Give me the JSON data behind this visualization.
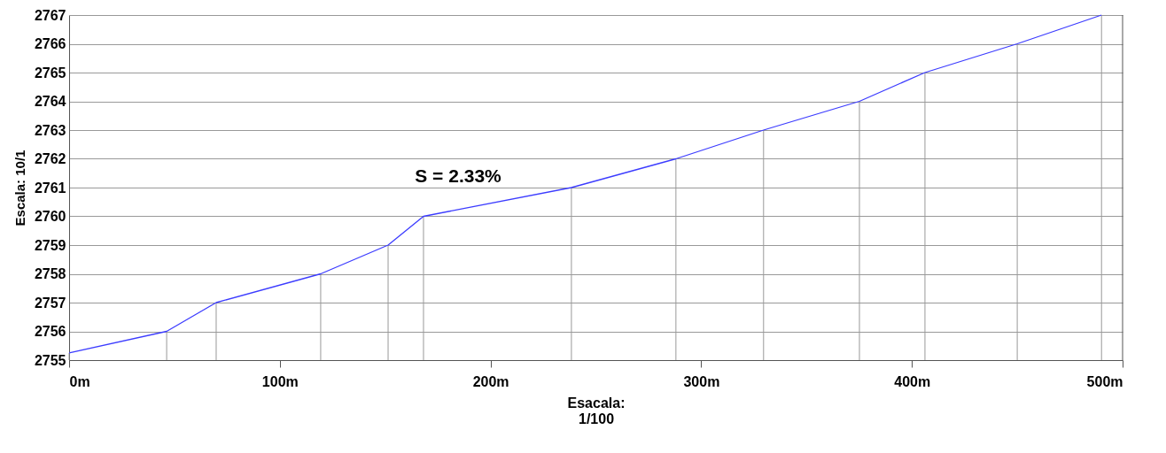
{
  "chart_data": {
    "type": "line",
    "xlabel": "Esacala:\n1/100",
    "ylabel": "Escala: 10/1",
    "x": [
      0,
      46.3,
      69.8,
      119.4,
      151.4,
      168.2,
      238.4,
      288,
      329.6,
      375.1,
      406.2,
      450,
      490
    ],
    "series": [
      {
        "color": "#3c3cff",
        "values": [
          2755.25,
          2756,
          2757,
          2758,
          2759,
          2760,
          2761,
          2762,
          2763,
          2764,
          2765,
          2766,
          2767
        ]
      },
      {
        "type": "bar",
        "color": "#999999",
        "values": [
          2755.25,
          2756,
          2757,
          2758,
          2759,
          2760,
          2761,
          2762,
          2763,
          2764,
          2765,
          2766,
          2767
        ]
      }
    ],
    "xlim": [
      0,
      500
    ],
    "xticks": [
      {
        "value": 0,
        "label": "0m"
      },
      {
        "value": 100,
        "label": "100m"
      },
      {
        "value": 200,
        "label": "200m"
      },
      {
        "value": 300,
        "label": "300m"
      },
      {
        "value": 400,
        "label": "400m"
      },
      {
        "value": 500,
        "label": "500m"
      }
    ],
    "ylim": [
      2755,
      2767
    ],
    "yticks": [
      2755,
      2756,
      2757,
      2758,
      2759,
      2760,
      2761,
      2762,
      2763,
      2764,
      2765,
      2766,
      2767
    ],
    "grid": "y",
    "marker": "none",
    "line_style": "solid",
    "annotations": [
      "S = 2.33%"
    ]
  }
}
